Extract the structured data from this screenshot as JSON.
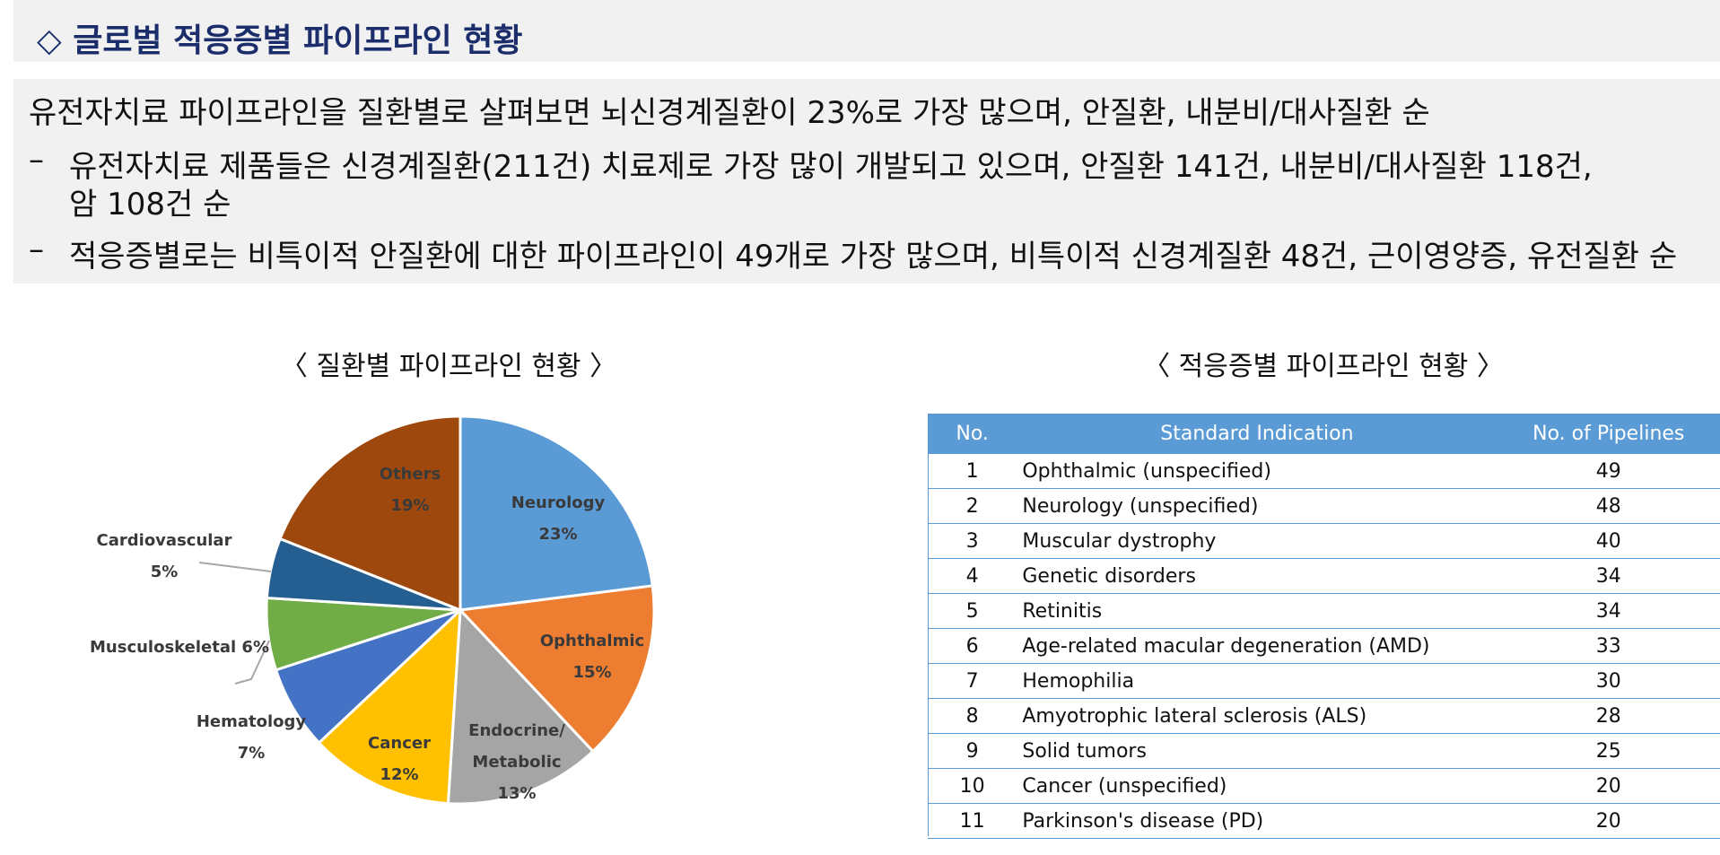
{
  "header": {
    "title": "◇ 글로벌 적응증별 파이프라인 현황"
  },
  "summary": {
    "line1": "유전자치료 파이프라인을 질환별로 살펴보면 뇌신경계질환이 23%로 가장 많으며, 안질환, 내분비/대사질환 순",
    "bullet_mark": "–",
    "bullet1_line1": "유전자치료 제품들은 신경계질환(211건) 치료제로 가장 많이 개발되고 있으며, 안질환 141건, 내분비/대사질환 118건,",
    "bullet1_line2": "암 108건  순",
    "bullet2": "적응증별로는 비특이적 안질환에 대한 파이프라인이 49개로 가장 많으며, 비특이적 신경계질환 48건, 근이영양증, 유전질환 순"
  },
  "pie_section": {
    "title": "〈 질환별 파이프라인 현황 〉"
  },
  "table_section": {
    "title": "〈 적응증별 파이프라인 현황 〉",
    "headers": [
      "No.",
      "Standard Indication",
      "No. of Pipelines"
    ],
    "rows": [
      {
        "no": "1",
        "indication": "Ophthalmic (unspecified)",
        "count": "49"
      },
      {
        "no": "2",
        "indication": "Neurology (unspecified)",
        "count": "48"
      },
      {
        "no": "3",
        "indication": "Muscular dystrophy",
        "count": "40"
      },
      {
        "no": "4",
        "indication": "Genetic disorders",
        "count": "34"
      },
      {
        "no": "5",
        "indication": "Retinitis",
        "count": "34"
      },
      {
        "no": "6",
        "indication": "Age-related macular degeneration (AMD)",
        "count": "33"
      },
      {
        "no": "7",
        "indication": "Hemophilia",
        "count": "30"
      },
      {
        "no": "8",
        "indication": "Amyotrophic lateral sclerosis (ALS)",
        "count": "28"
      },
      {
        "no": "9",
        "indication": "Solid tumors",
        "count": "25"
      },
      {
        "no": "10",
        "indication": "Cancer (unspecified)",
        "count": "20"
      },
      {
        "no": "11",
        "indication": "Parkinson's disease (PD)",
        "count": "20"
      }
    ]
  },
  "chart_data": [
    {
      "type": "pie",
      "title": "〈 질환별 파이프라인 현황 〉",
      "slices": [
        {
          "label": "Neurology",
          "value": 23,
          "display": "23%",
          "color": "#5b9bd5"
        },
        {
          "label": "Ophthalmic",
          "value": 15,
          "display": "15%",
          "color": "#ed7d31"
        },
        {
          "label": "Endocrine/ Metabolic",
          "value": 13,
          "display": "13%",
          "color": "#a5a5a5"
        },
        {
          "label": "Cancer",
          "value": 12,
          "display": "12%",
          "color": "#ffc000"
        },
        {
          "label": "Hematology",
          "value": 7,
          "display": "7%",
          "color": "#4472c4"
        },
        {
          "label": "Musculoskeletal",
          "value": 6,
          "display": "6%",
          "color": "#70ad47"
        },
        {
          "label": "Cardiovascular",
          "value": 5,
          "display": "5%",
          "color": "#255e91"
        },
        {
          "label": "Others",
          "value": 19,
          "display": "19%",
          "color": "#9e480e"
        }
      ]
    },
    {
      "type": "table",
      "title": "〈 적응증별 파이프라인 현황 〉",
      "columns": [
        "No.",
        "Standard Indication",
        "No. of Pipelines"
      ],
      "values": [
        49,
        48,
        40,
        34,
        34,
        33,
        30,
        28,
        25,
        20,
        20
      ]
    }
  ]
}
